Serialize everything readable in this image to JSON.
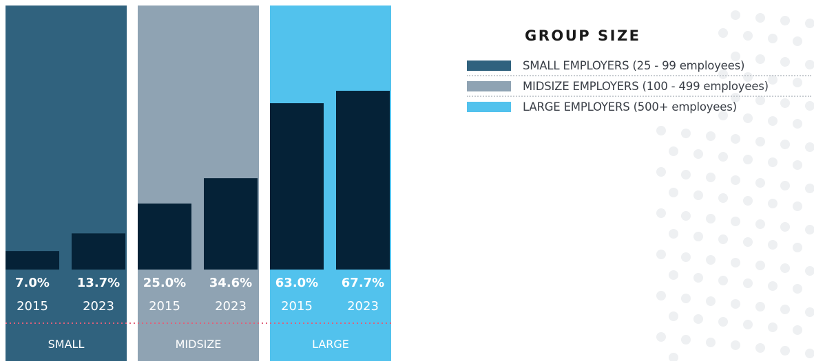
{
  "chart_data": {
    "type": "bar",
    "groups": [
      {
        "name": "SMALL",
        "color": "#30627e",
        "points": [
          {
            "year": "2015",
            "value": 7.0,
            "label": "7.0%"
          },
          {
            "year": "2023",
            "value": 13.7,
            "label": "13.7%"
          }
        ]
      },
      {
        "name": "MIDSIZE",
        "color": "#8fa3b3",
        "points": [
          {
            "year": "2015",
            "value": 25.0,
            "label": "25.0%"
          },
          {
            "year": "2023",
            "value": 34.6,
            "label": "34.6%"
          }
        ]
      },
      {
        "name": "LARGE",
        "color": "#52c2ed",
        "points": [
          {
            "year": "2015",
            "value": 63.0,
            "label": "63.0%"
          },
          {
            "year": "2023",
            "value": 67.7,
            "label": "67.7%"
          }
        ]
      }
    ],
    "bar_color": "#052237",
    "ylim": [
      0,
      100
    ]
  },
  "legend": {
    "title": "GROUP SIZE",
    "items": [
      {
        "label": "SMALL EMPLOYERS (25 - 99 employees)",
        "color": "#30627e"
      },
      {
        "label": "MIDSIZE EMPLOYERS (100 - 499 employees)",
        "color": "#8fa3b3"
      },
      {
        "label": "LARGE EMPLOYERS (500+ employees)",
        "color": "#52c2ed"
      }
    ]
  }
}
